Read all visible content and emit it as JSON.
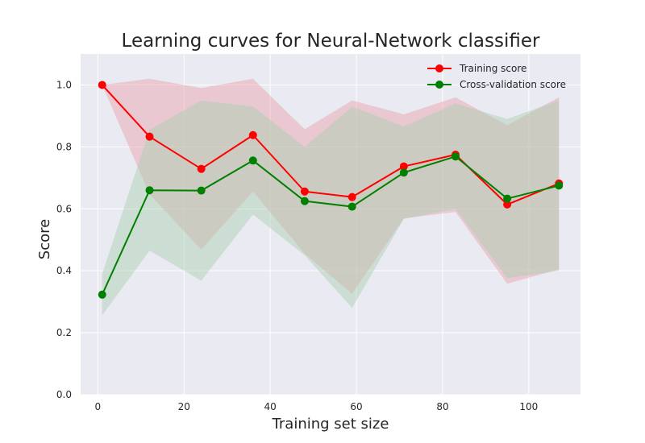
{
  "chart_data": {
    "type": "line",
    "title": "Learning curves for Neural-Network classifier",
    "xlabel": "Training set size",
    "ylabel": "Score",
    "xlim": [
      -4,
      112
    ],
    "ylim": [
      0.0,
      1.1
    ],
    "xticks": [
      0,
      20,
      40,
      60,
      80,
      100
    ],
    "yticks": [
      0.0,
      0.2,
      0.4,
      0.6,
      0.8,
      1.0
    ],
    "xtick_labels": [
      "0",
      "20",
      "40",
      "60",
      "80",
      "100"
    ],
    "ytick_labels": [
      "0.0",
      "0.2",
      "0.4",
      "0.6",
      "0.8",
      "1.0"
    ],
    "grid": true,
    "legend_position": "top-right",
    "x": [
      1,
      12,
      24,
      36,
      48,
      59,
      71,
      83,
      95,
      107
    ],
    "series": [
      {
        "name": "Training score",
        "color": "#ff0000",
        "band_color": "#e8a0aa",
        "values": [
          1.0,
          0.833,
          0.729,
          0.838,
          0.656,
          0.638,
          0.737,
          0.775,
          0.614,
          0.682
        ],
        "band_upper": [
          1.0,
          1.02,
          0.99,
          1.02,
          0.857,
          0.95,
          0.905,
          0.96,
          0.87,
          0.96
        ],
        "band_lower": [
          1.0,
          0.647,
          0.468,
          0.656,
          0.455,
          0.326,
          0.569,
          0.59,
          0.358,
          0.405
        ]
      },
      {
        "name": "Cross-validation score",
        "color": "#008000",
        "band_color": "#a8cfae",
        "values": [
          0.323,
          0.66,
          0.659,
          0.756,
          0.625,
          0.607,
          0.717,
          0.769,
          0.633,
          0.675
        ],
        "band_upper": [
          0.39,
          0.855,
          0.95,
          0.93,
          0.8,
          0.93,
          0.866,
          0.94,
          0.89,
          0.95
        ],
        "band_lower": [
          0.256,
          0.465,
          0.368,
          0.582,
          0.45,
          0.28,
          0.568,
          0.6,
          0.376,
          0.4
        ]
      }
    ]
  }
}
